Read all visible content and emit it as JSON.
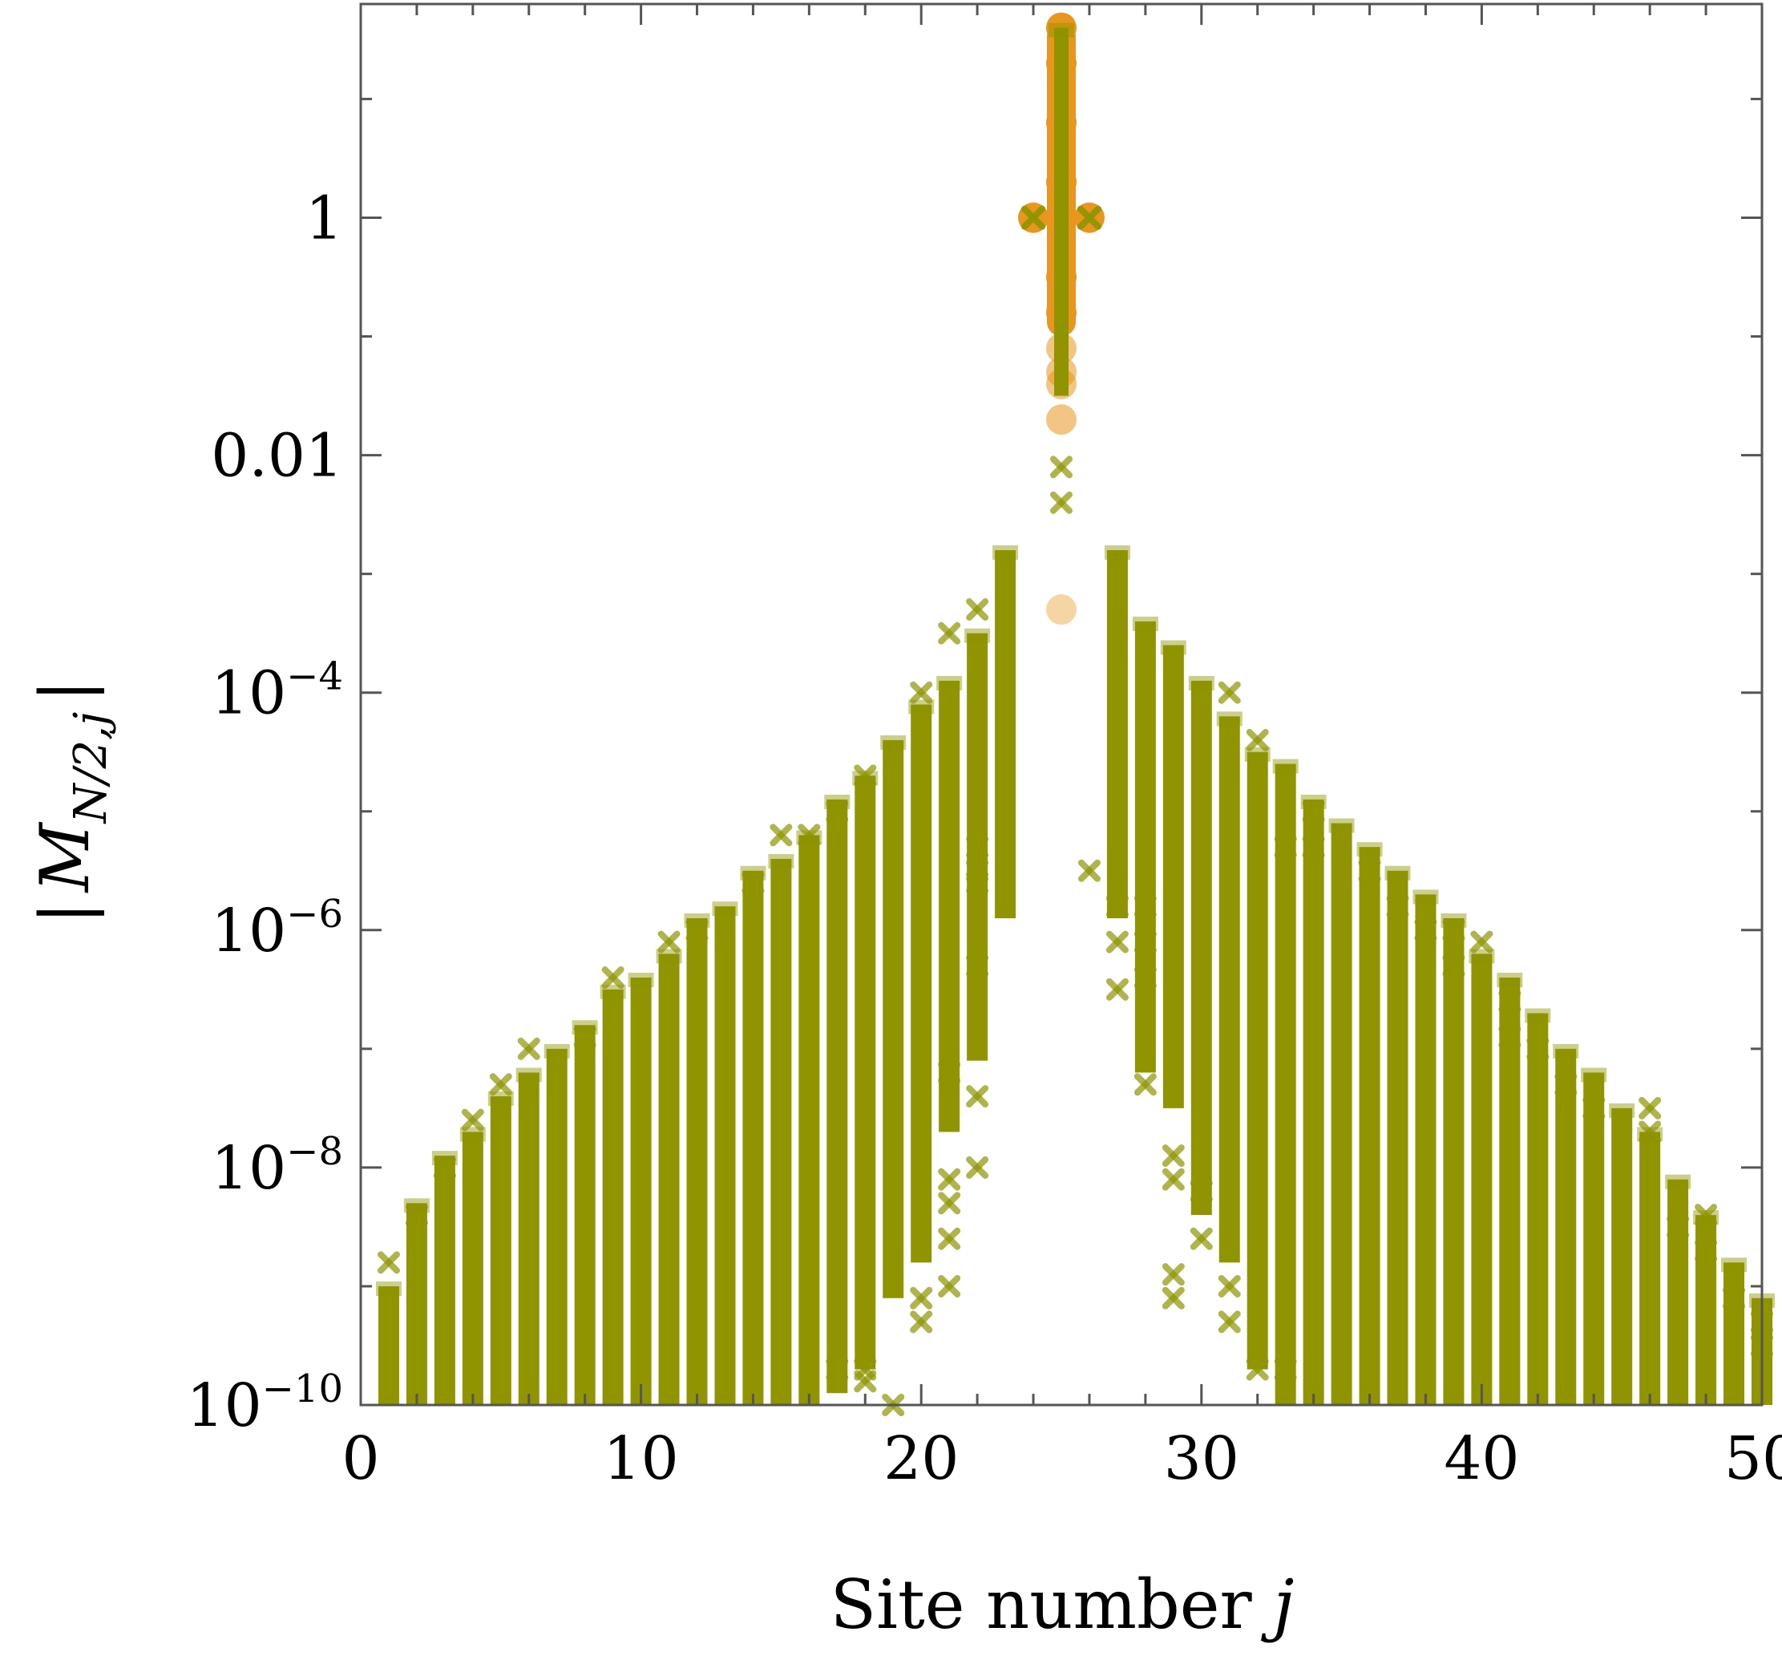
{
  "chart_data": {
    "type": "scatter",
    "xlabel": "Site number j",
    "xlabel_parts": {
      "text": "Site number ",
      "var": "j"
    },
    "ylabel": "|M_{N/2,j}|",
    "ylabel_parts": {
      "bar": "|",
      "var": "M",
      "sub": "N/2,j"
    },
    "x_scale": "linear",
    "y_scale": "log10",
    "xlim": [
      0,
      50
    ],
    "ylim_log10": [
      -10,
      1.8
    ],
    "x_ticks": [
      0,
      10,
      20,
      30,
      40,
      50
    ],
    "x_tick_labels": [
      "0",
      "10",
      "20",
      "30",
      "40",
      "50"
    ],
    "y_ticks": [
      {
        "log10": 0,
        "base": "1",
        "exp": ""
      },
      {
        "log10": -2,
        "base": "0.01",
        "exp": ""
      },
      {
        "log10": -4,
        "base": "10",
        "exp": "−4"
      },
      {
        "log10": -6,
        "base": "10",
        "exp": "−6"
      },
      {
        "log10": -8,
        "base": "10",
        "exp": "−8"
      },
      {
        "log10": -10,
        "base": "10",
        "exp": "−10"
      }
    ],
    "grid": false,
    "legend": "none",
    "colors": {
      "series_cross": "#8f9400",
      "series_circle": "#e8961e",
      "axis": "#555555"
    },
    "series": [
      {
        "marker": "cross",
        "color": "#8f9400",
        "note_ranges": "per site j: [log10(min), log10(max)] of |M| over realizations",
        "columns": [
          {
            "j": 1,
            "range": [
              -10,
              -9.0
            ]
          },
          {
            "j": 2,
            "range": [
              -10,
              -8.3
            ]
          },
          {
            "j": 3,
            "range": [
              -10,
              -7.9
            ]
          },
          {
            "j": 4,
            "range": [
              -10,
              -7.7
            ]
          },
          {
            "j": 5,
            "range": [
              -10,
              -7.4
            ]
          },
          {
            "j": 6,
            "range": [
              -10,
              -7.2
            ]
          },
          {
            "j": 7,
            "range": [
              -10,
              -7.0
            ]
          },
          {
            "j": 8,
            "range": [
              -10,
              -6.8
            ]
          },
          {
            "j": 9,
            "range": [
              -10,
              -6.5
            ]
          },
          {
            "j": 10,
            "range": [
              -10,
              -6.4
            ]
          },
          {
            "j": 11,
            "range": [
              -10,
              -6.2
            ]
          },
          {
            "j": 12,
            "range": [
              -10,
              -5.9
            ]
          },
          {
            "j": 13,
            "range": [
              -10,
              -5.8
            ]
          },
          {
            "j": 14,
            "range": [
              -10,
              -5.5
            ]
          },
          {
            "j": 15,
            "range": [
              -10,
              -5.4
            ]
          },
          {
            "j": 16,
            "range": [
              -10,
              -5.2
            ]
          },
          {
            "j": 17,
            "range": [
              -9.9,
              -4.9
            ]
          },
          {
            "j": 18,
            "range": [
              -9.7,
              -4.7
            ]
          },
          {
            "j": 19,
            "range": [
              -9.1,
              -4.4
            ]
          },
          {
            "j": 20,
            "range": [
              -8.8,
              -4.1
            ]
          },
          {
            "j": 21,
            "range": [
              -7.7,
              -3.9
            ]
          },
          {
            "j": 22,
            "range": [
              -7.1,
              -3.5
            ]
          },
          {
            "j": 23,
            "range": [
              -5.9,
              -2.8
            ]
          },
          {
            "j": 25,
            "range": [
              -1.5,
              1.6
            ]
          },
          {
            "j": 27,
            "range": [
              -5.9,
              -2.8
            ]
          },
          {
            "j": 28,
            "range": [
              -7.2,
              -3.4
            ]
          },
          {
            "j": 29,
            "range": [
              -7.5,
              -3.6
            ]
          },
          {
            "j": 30,
            "range": [
              -8.4,
              -3.9
            ]
          },
          {
            "j": 31,
            "range": [
              -8.8,
              -4.2
            ]
          },
          {
            "j": 32,
            "range": [
              -9.7,
              -4.5
            ]
          },
          {
            "j": 33,
            "range": [
              -10,
              -4.6
            ]
          },
          {
            "j": 34,
            "range": [
              -10,
              -4.9
            ]
          },
          {
            "j": 35,
            "range": [
              -10,
              -5.1
            ]
          },
          {
            "j": 36,
            "range": [
              -10,
              -5.3
            ]
          },
          {
            "j": 37,
            "range": [
              -10,
              -5.5
            ]
          },
          {
            "j": 38,
            "range": [
              -10,
              -5.7
            ]
          },
          {
            "j": 39,
            "range": [
              -10,
              -5.9
            ]
          },
          {
            "j": 40,
            "range": [
              -10,
              -6.2
            ]
          },
          {
            "j": 41,
            "range": [
              -10,
              -6.4
            ]
          },
          {
            "j": 42,
            "range": [
              -10,
              -6.7
            ]
          },
          {
            "j": 43,
            "range": [
              -10,
              -7.0
            ]
          },
          {
            "j": 44,
            "range": [
              -10,
              -7.2
            ]
          },
          {
            "j": 45,
            "range": [
              -10,
              -7.5
            ]
          },
          {
            "j": 46,
            "range": [
              -10,
              -7.7
            ]
          },
          {
            "j": 47,
            "range": [
              -10,
              -8.1
            ]
          },
          {
            "j": 48,
            "range": [
              -10,
              -8.4
            ]
          },
          {
            "j": 49,
            "range": [
              -10,
              -8.8
            ]
          },
          {
            "j": 50,
            "range": [
              -10,
              -9.1
            ]
          }
        ],
        "outliers": [
          [
            1,
            -8.8
          ],
          [
            2,
            -8.4
          ],
          [
            3,
            -8.0
          ],
          [
            4,
            -7.6
          ],
          [
            5,
            -7.3
          ],
          [
            6,
            -7.0
          ],
          [
            8,
            -6.9
          ],
          [
            9,
            -6.4
          ],
          [
            11,
            -6.1
          ],
          [
            12,
            -6.0
          ],
          [
            14,
            -5.6
          ],
          [
            15,
            -5.2
          ],
          [
            16,
            -5.2
          ],
          [
            17,
            -5.0
          ],
          [
            18,
            -4.7
          ],
          [
            18,
            -9.7
          ],
          [
            18,
            -9.8
          ],
          [
            19,
            -10.0
          ],
          [
            20,
            -9.3
          ],
          [
            20,
            -9.1
          ],
          [
            21,
            -9.0
          ],
          [
            21,
            -8.6
          ],
          [
            21,
            -8.3
          ],
          [
            22,
            -7.4
          ],
          [
            22,
            -6.3
          ],
          [
            22,
            -5.6
          ],
          [
            22,
            -5.5
          ],
          [
            22,
            -5.3
          ],
          [
            21,
            -7.2
          ],
          [
            21,
            -3.5
          ],
          [
            22,
            -3.3
          ],
          [
            20,
            -4.0
          ],
          [
            17,
            -9.7
          ],
          [
            22,
            -8.0
          ],
          [
            21,
            -8.1
          ],
          [
            25,
            -2.1
          ],
          [
            25,
            -2.4
          ],
          [
            28,
            -5.8
          ],
          [
            28,
            -6.1
          ],
          [
            28,
            -6.4
          ],
          [
            28,
            -7.3
          ],
          [
            29,
            -8.1
          ],
          [
            30,
            -8.6
          ],
          [
            30,
            -8.2
          ],
          [
            31,
            -9.0
          ],
          [
            31,
            -9.3
          ],
          [
            32,
            -9.7
          ],
          [
            29,
            -7.9
          ],
          [
            31,
            -4.0
          ],
          [
            32,
            -4.4
          ],
          [
            33,
            -5.3
          ],
          [
            34,
            -5.3
          ],
          [
            34,
            -5.0
          ],
          [
            36,
            -5.5
          ],
          [
            37,
            -5.8
          ],
          [
            38,
            -6.0
          ],
          [
            39,
            -6.0
          ],
          [
            39,
            -6.3
          ],
          [
            40,
            -6.1
          ],
          [
            41,
            -6.6
          ],
          [
            41,
            -6.9
          ],
          [
            42,
            -7.0
          ],
          [
            43,
            -7.3
          ],
          [
            44,
            -7.5
          ],
          [
            46,
            -7.5
          ],
          [
            46,
            -7.7
          ],
          [
            47,
            -8.5
          ],
          [
            48,
            -8.7
          ],
          [
            48,
            -8.4
          ],
          [
            49,
            -9.1
          ],
          [
            50,
            -9.3
          ],
          [
            50,
            -9.5
          ],
          [
            27,
            -5.8
          ],
          [
            27,
            -6.1
          ],
          [
            27,
            -6.5
          ],
          [
            26,
            -5.5
          ],
          [
            29,
            -8.9
          ],
          [
            29,
            -9.1
          ],
          [
            33,
            -9.7
          ]
        ]
      },
      {
        "marker": "circle",
        "color": "#e8961e",
        "points": [
          [
            24,
            0
          ],
          [
            26,
            0
          ],
          [
            25,
            1.6
          ],
          [
            25,
            1.3
          ],
          [
            25,
            0.8
          ],
          [
            25,
            0.3
          ],
          [
            25,
            -0.5
          ],
          [
            25,
            -0.8
          ],
          [
            25,
            -1.1
          ],
          [
            25,
            -1.3
          ],
          [
            25,
            -1.4
          ],
          [
            25,
            -1.7
          ],
          [
            25,
            -3.3
          ]
        ],
        "column": {
          "j": 25,
          "range": [
            -1.0,
            1.65
          ]
        }
      }
    ]
  }
}
